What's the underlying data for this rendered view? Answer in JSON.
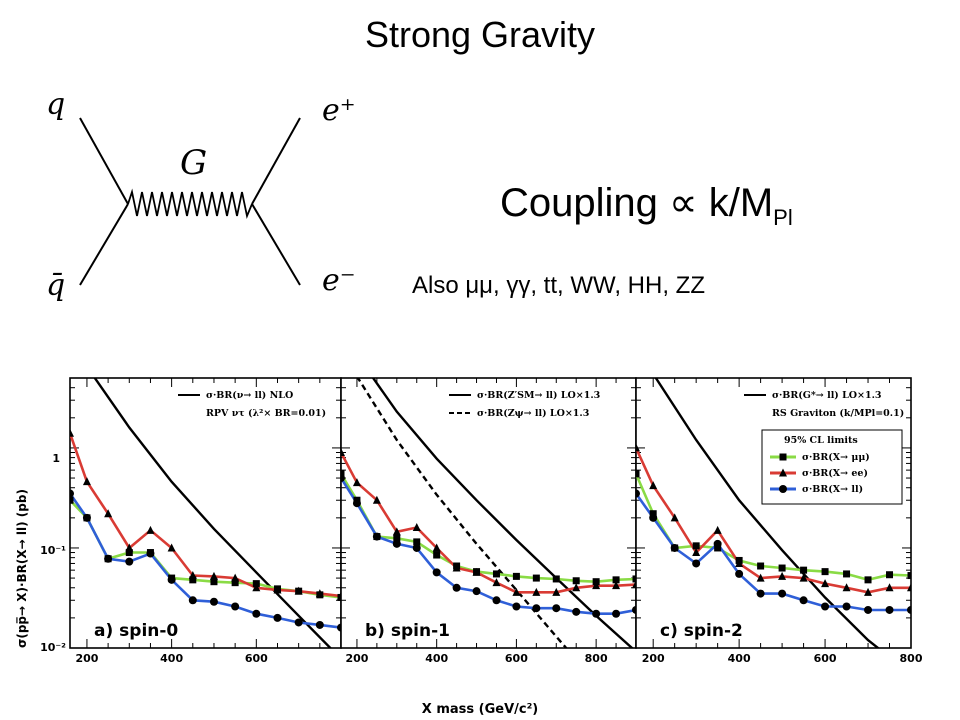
{
  "title": "Strong Gravity",
  "coupling": {
    "prefix": "Coupling ",
    "symbol": "∝",
    "text": " k/M",
    "sub": "Pl"
  },
  "also": "Also μμ, γγ, tt, WW, HH, ZZ",
  "diagram": {
    "q": "q",
    "qbar": "q̄",
    "G": "G",
    "eplus": "e⁺",
    "eminus": "e⁻"
  },
  "colors": {
    "green": "#8adb45",
    "red": "#d93b34",
    "blue": "#2f5fd8",
    "black": "#000000"
  },
  "chart_data": [
    {
      "type": "line",
      "panel_label": "a) spin-0",
      "xlim": [
        160,
        800
      ],
      "ylim": [
        0.01,
        5
      ],
      "yscale": "log",
      "theory": [
        {
          "label": "σ·BR(ν→ ll) NLO",
          "dash": false,
          "x": [
            200,
            300,
            400,
            500,
            600,
            700,
            780
          ],
          "y": [
            6.5,
            1.6,
            0.46,
            0.155,
            0.057,
            0.021,
            0.0095
          ]
        }
      ],
      "note": "RPV ντ (λ²× BR=0.01)",
      "series": [
        {
          "name": "σ·BR(X→ μμ)",
          "color": "#8adb45",
          "marker": "square",
          "x": [
            160,
            200,
            250,
            300,
            350,
            400,
            450,
            500,
            550,
            600,
            650,
            700,
            750,
            800
          ],
          "y": [
            0.3,
            0.2,
            0.078,
            0.09,
            0.09,
            0.05,
            0.048,
            0.046,
            0.045,
            0.044,
            0.039,
            0.037,
            0.034,
            0.032
          ]
        },
        {
          "name": "σ·BR(X→ ee)",
          "color": "#d93b34",
          "marker": "triangle",
          "x": [
            160,
            200,
            250,
            300,
            350,
            400,
            450,
            500,
            550,
            600,
            650,
            700,
            750,
            800
          ],
          "y": [
            1.4,
            0.46,
            0.22,
            0.1,
            0.15,
            0.1,
            0.053,
            0.052,
            0.05,
            0.04,
            0.038,
            0.037,
            0.035,
            0.033
          ]
        },
        {
          "name": "σ·BR(X→ ll)",
          "color": "#2f5fd8",
          "marker": "circle",
          "x": [
            160,
            200,
            250,
            300,
            350,
            400,
            450,
            500,
            550,
            600,
            650,
            700,
            750,
            800
          ],
          "y": [
            0.35,
            0.2,
            0.078,
            0.073,
            0.088,
            0.048,
            0.03,
            0.029,
            0.026,
            0.022,
            0.02,
            0.018,
            0.017,
            0.016
          ]
        }
      ]
    },
    {
      "type": "line",
      "panel_label": "b) spin-1",
      "xlim": [
        160,
        900
      ],
      "ylim": [
        0.01,
        5
      ],
      "yscale": "log",
      "theory": [
        {
          "label": "σ·BR(Z′SM→ ll) LO×1.3",
          "dash": false,
          "x": [
            200,
            300,
            400,
            500,
            600,
            700,
            800,
            900
          ],
          "y": [
            8.5,
            2.3,
            0.78,
            0.3,
            0.12,
            0.05,
            0.021,
            0.0092
          ]
        },
        {
          "label": "σ·BR(Zψ→ ll) LO×1.3",
          "dash": true,
          "x": [
            200,
            300,
            400,
            500,
            600,
            700,
            800
          ],
          "y": [
            5.2,
            1.2,
            0.34,
            0.11,
            0.038,
            0.013,
            0.0045
          ]
        }
      ],
      "series": [
        {
          "name": "σ·BR(X→ μμ)",
          "color": "#8adb45",
          "marker": "square",
          "x": [
            160,
            200,
            250,
            300,
            350,
            400,
            450,
            500,
            550,
            600,
            650,
            700,
            750,
            800,
            850,
            900
          ],
          "y": [
            0.55,
            0.3,
            0.13,
            0.125,
            0.115,
            0.085,
            0.066,
            0.058,
            0.055,
            0.052,
            0.05,
            0.049,
            0.047,
            0.046,
            0.048,
            0.049
          ]
        },
        {
          "name": "σ·BR(X→ ee)",
          "color": "#d93b34",
          "marker": "triangle",
          "x": [
            160,
            200,
            250,
            300,
            350,
            400,
            450,
            500,
            550,
            600,
            650,
            700,
            750,
            800,
            850,
            900
          ],
          "y": [
            0.9,
            0.45,
            0.3,
            0.145,
            0.16,
            0.1,
            0.063,
            0.057,
            0.045,
            0.036,
            0.036,
            0.036,
            0.04,
            0.042,
            0.042,
            0.043
          ]
        },
        {
          "name": "σ·BR(X→ ll)",
          "color": "#2f5fd8",
          "marker": "circle",
          "x": [
            160,
            200,
            250,
            300,
            350,
            400,
            450,
            500,
            550,
            600,
            650,
            700,
            750,
            800,
            850,
            900
          ],
          "y": [
            0.5,
            0.28,
            0.13,
            0.11,
            0.1,
            0.057,
            0.04,
            0.037,
            0.03,
            0.026,
            0.025,
            0.025,
            0.023,
            0.022,
            0.022,
            0.024
          ]
        }
      ]
    },
    {
      "type": "line",
      "panel_label": "c) spin-2",
      "xlim": [
        160,
        800
      ],
      "ylim": [
        0.01,
        5
      ],
      "yscale": "log",
      "theory": [
        {
          "label": "σ·BR(G*→ ll) LO×1.3",
          "dash": false,
          "x": [
            200,
            300,
            400,
            500,
            600,
            700,
            800
          ],
          "y": [
            5.5,
            1.2,
            0.3,
            0.095,
            0.032,
            0.012,
            0.0055
          ]
        }
      ],
      "note": "RS Graviton (k/MPl=0.1)",
      "legend_title": "95% CL limits",
      "series": [
        {
          "name": "σ·BR(X→ μμ)",
          "color": "#8adb45",
          "marker": "square",
          "x": [
            160,
            200,
            250,
            300,
            350,
            400,
            450,
            500,
            550,
            600,
            650,
            700,
            750,
            800
          ],
          "y": [
            0.55,
            0.22,
            0.1,
            0.105,
            0.1,
            0.075,
            0.066,
            0.063,
            0.06,
            0.058,
            0.055,
            0.048,
            0.054,
            0.053
          ]
        },
        {
          "name": "σ·BR(X→ ee)",
          "color": "#d93b34",
          "marker": "triangle",
          "x": [
            160,
            200,
            250,
            300,
            350,
            400,
            450,
            500,
            550,
            600,
            650,
            700,
            750,
            800
          ],
          "y": [
            1.0,
            0.42,
            0.2,
            0.09,
            0.15,
            0.07,
            0.05,
            0.052,
            0.05,
            0.044,
            0.04,
            0.036,
            0.04,
            0.04
          ]
        },
        {
          "name": "σ·BR(X→ ll)",
          "color": "#2f5fd8",
          "marker": "circle",
          "x": [
            160,
            200,
            250,
            300,
            350,
            400,
            450,
            500,
            550,
            600,
            650,
            700,
            750,
            800
          ],
          "y": [
            0.35,
            0.2,
            0.1,
            0.07,
            0.11,
            0.055,
            0.035,
            0.035,
            0.03,
            0.026,
            0.026,
            0.024,
            0.024,
            0.024
          ]
        }
      ]
    }
  ],
  "axes": {
    "ylabel": "σ(pp̅→ X)·BR(X→ ll) (pb)",
    "xlabel": "X mass (GeV/c²)",
    "ytick_labels": [
      "1",
      "10⁻¹",
      "10⁻²"
    ],
    "xtick_labels_a": [
      "200",
      "400",
      "600"
    ],
    "xtick_labels_b": [
      "200",
      "400",
      "600",
      "800"
    ],
    "xtick_labels_c": [
      "200",
      "400",
      "600",
      "800"
    ]
  }
}
